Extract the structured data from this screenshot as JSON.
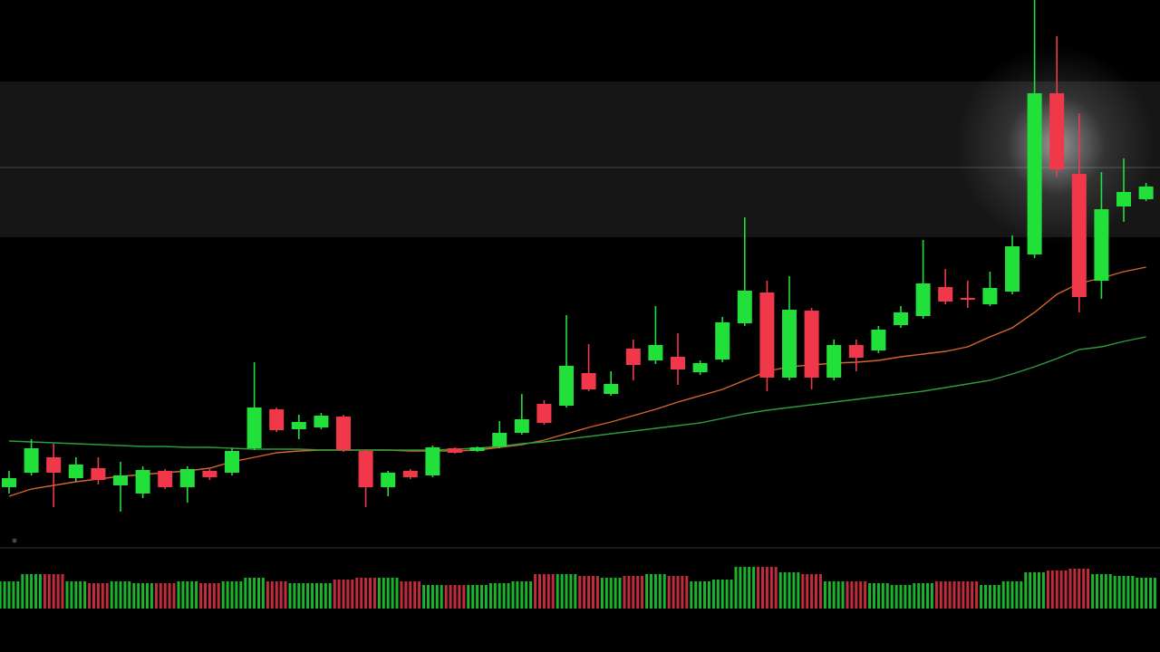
{
  "chart_data": [
    {
      "type": "candlestick",
      "categories": [
        null,
        null,
        null,
        null,
        null,
        null,
        null,
        null,
        null,
        null,
        null,
        null,
        null,
        null,
        null,
        null,
        null,
        null,
        null,
        null,
        null,
        null,
        null,
        null,
        null,
        null,
        null,
        null,
        null,
        null,
        null,
        null,
        null,
        null,
        null,
        null,
        null,
        null,
        null,
        null,
        null,
        null,
        null,
        null,
        null,
        null,
        null,
        null,
        null,
        null,
        null,
        null
      ],
      "open": [
        182,
        198,
        215,
        192,
        203,
        184,
        175,
        200,
        182,
        200,
        198,
        225,
        268,
        246,
        248,
        260,
        222,
        182,
        200,
        195,
        225,
        222,
        227,
        242,
        274,
        272,
        308,
        285,
        335,
        322,
        326,
        309,
        323,
        363,
        397,
        303,
        377,
        303,
        339,
        333,
        361,
        371,
        403,
        391,
        384,
        398,
        439,
        617,
        528,
        410,
        492,
        500
      ],
      "high": [
        200,
        235,
        230,
        215,
        215,
        210,
        205,
        202,
        205,
        202,
        225,
        320,
        270,
        262,
        264,
        262,
        224,
        200,
        202,
        228,
        226,
        227,
        255,
        285,
        278,
        372,
        340,
        310,
        345,
        382,
        352,
        322,
        370,
        480,
        410,
        415,
        380,
        345,
        345,
        360,
        382,
        455,
        423,
        410,
        420,
        460,
        720,
        680,
        595,
        530,
        545,
        518
      ],
      "low": [
        175,
        195,
        160,
        188,
        185,
        155,
        170,
        180,
        165,
        190,
        195,
        223,
        243,
        235,
        246,
        221,
        160,
        172,
        191,
        193,
        219,
        221,
        225,
        240,
        251,
        270,
        288,
        283,
        300,
        318,
        295,
        306,
        320,
        360,
        288,
        300,
        290,
        300,
        310,
        330,
        358,
        368,
        384,
        380,
        382,
        395,
        435,
        525,
        375,
        390,
        475,
        498
      ],
      "close": [
        192,
        225,
        198,
        207,
        190,
        195,
        201,
        182,
        202,
        193,
        222,
        270,
        245,
        254,
        261,
        223,
        182,
        198,
        193,
        226,
        220,
        226,
        242,
        257,
        253,
        316,
        290,
        296,
        317,
        339,
        312,
        319,
        364,
        399,
        303,
        378,
        303,
        339,
        325,
        356,
        375,
        407,
        387,
        389,
        402,
        448,
        617,
        533,
        392,
        489,
        508,
        514
      ],
      "up_color": "#22e03a",
      "down_color": "#f0384a",
      "series": [
        {
          "color": "#d8642c",
          "values": [
            172,
            180,
            184,
            188,
            191,
            194,
            196,
            198,
            200,
            203,
            210,
            215,
            220,
            222,
            223,
            223,
            223,
            223,
            222,
            222,
            222,
            223,
            226,
            229,
            234,
            241,
            248,
            254,
            261,
            268,
            276,
            283,
            290,
            300,
            310,
            315,
            317,
            319,
            320,
            322,
            326,
            329,
            332,
            337,
            348,
            358,
            375,
            395,
            407,
            413,
            420,
            425
          ]
        },
        {
          "color": "#2e9c3c",
          "values": [
            233,
            232,
            231,
            230,
            229,
            228,
            227,
            227,
            226,
            226,
            225,
            224,
            224,
            224,
            223,
            223,
            223,
            223,
            223,
            223,
            224,
            225,
            227,
            230,
            232,
            235,
            238,
            241,
            244,
            247,
            250,
            253,
            258,
            263,
            267,
            270,
            273,
            276,
            279,
            282,
            285,
            288,
            292,
            296,
            300,
            307,
            315,
            324,
            334,
            337,
            343,
            348
          ]
        }
      ],
      "ylim": [
        0,
        720
      ]
    },
    {
      "type": "volume",
      "values": [
        30,
        38,
        38,
        30,
        28,
        30,
        28,
        28,
        30,
        28,
        30,
        34,
        30,
        28,
        28,
        32,
        34,
        34,
        30,
        26,
        26,
        26,
        28,
        30,
        38,
        38,
        36,
        34,
        36,
        38,
        36,
        30,
        32,
        46,
        46,
        40,
        38,
        30,
        30,
        28,
        26,
        28,
        30,
        30,
        26,
        30,
        40,
        42,
        44,
        38,
        36,
        34
      ],
      "ylim": [
        0,
        50
      ]
    }
  ]
}
